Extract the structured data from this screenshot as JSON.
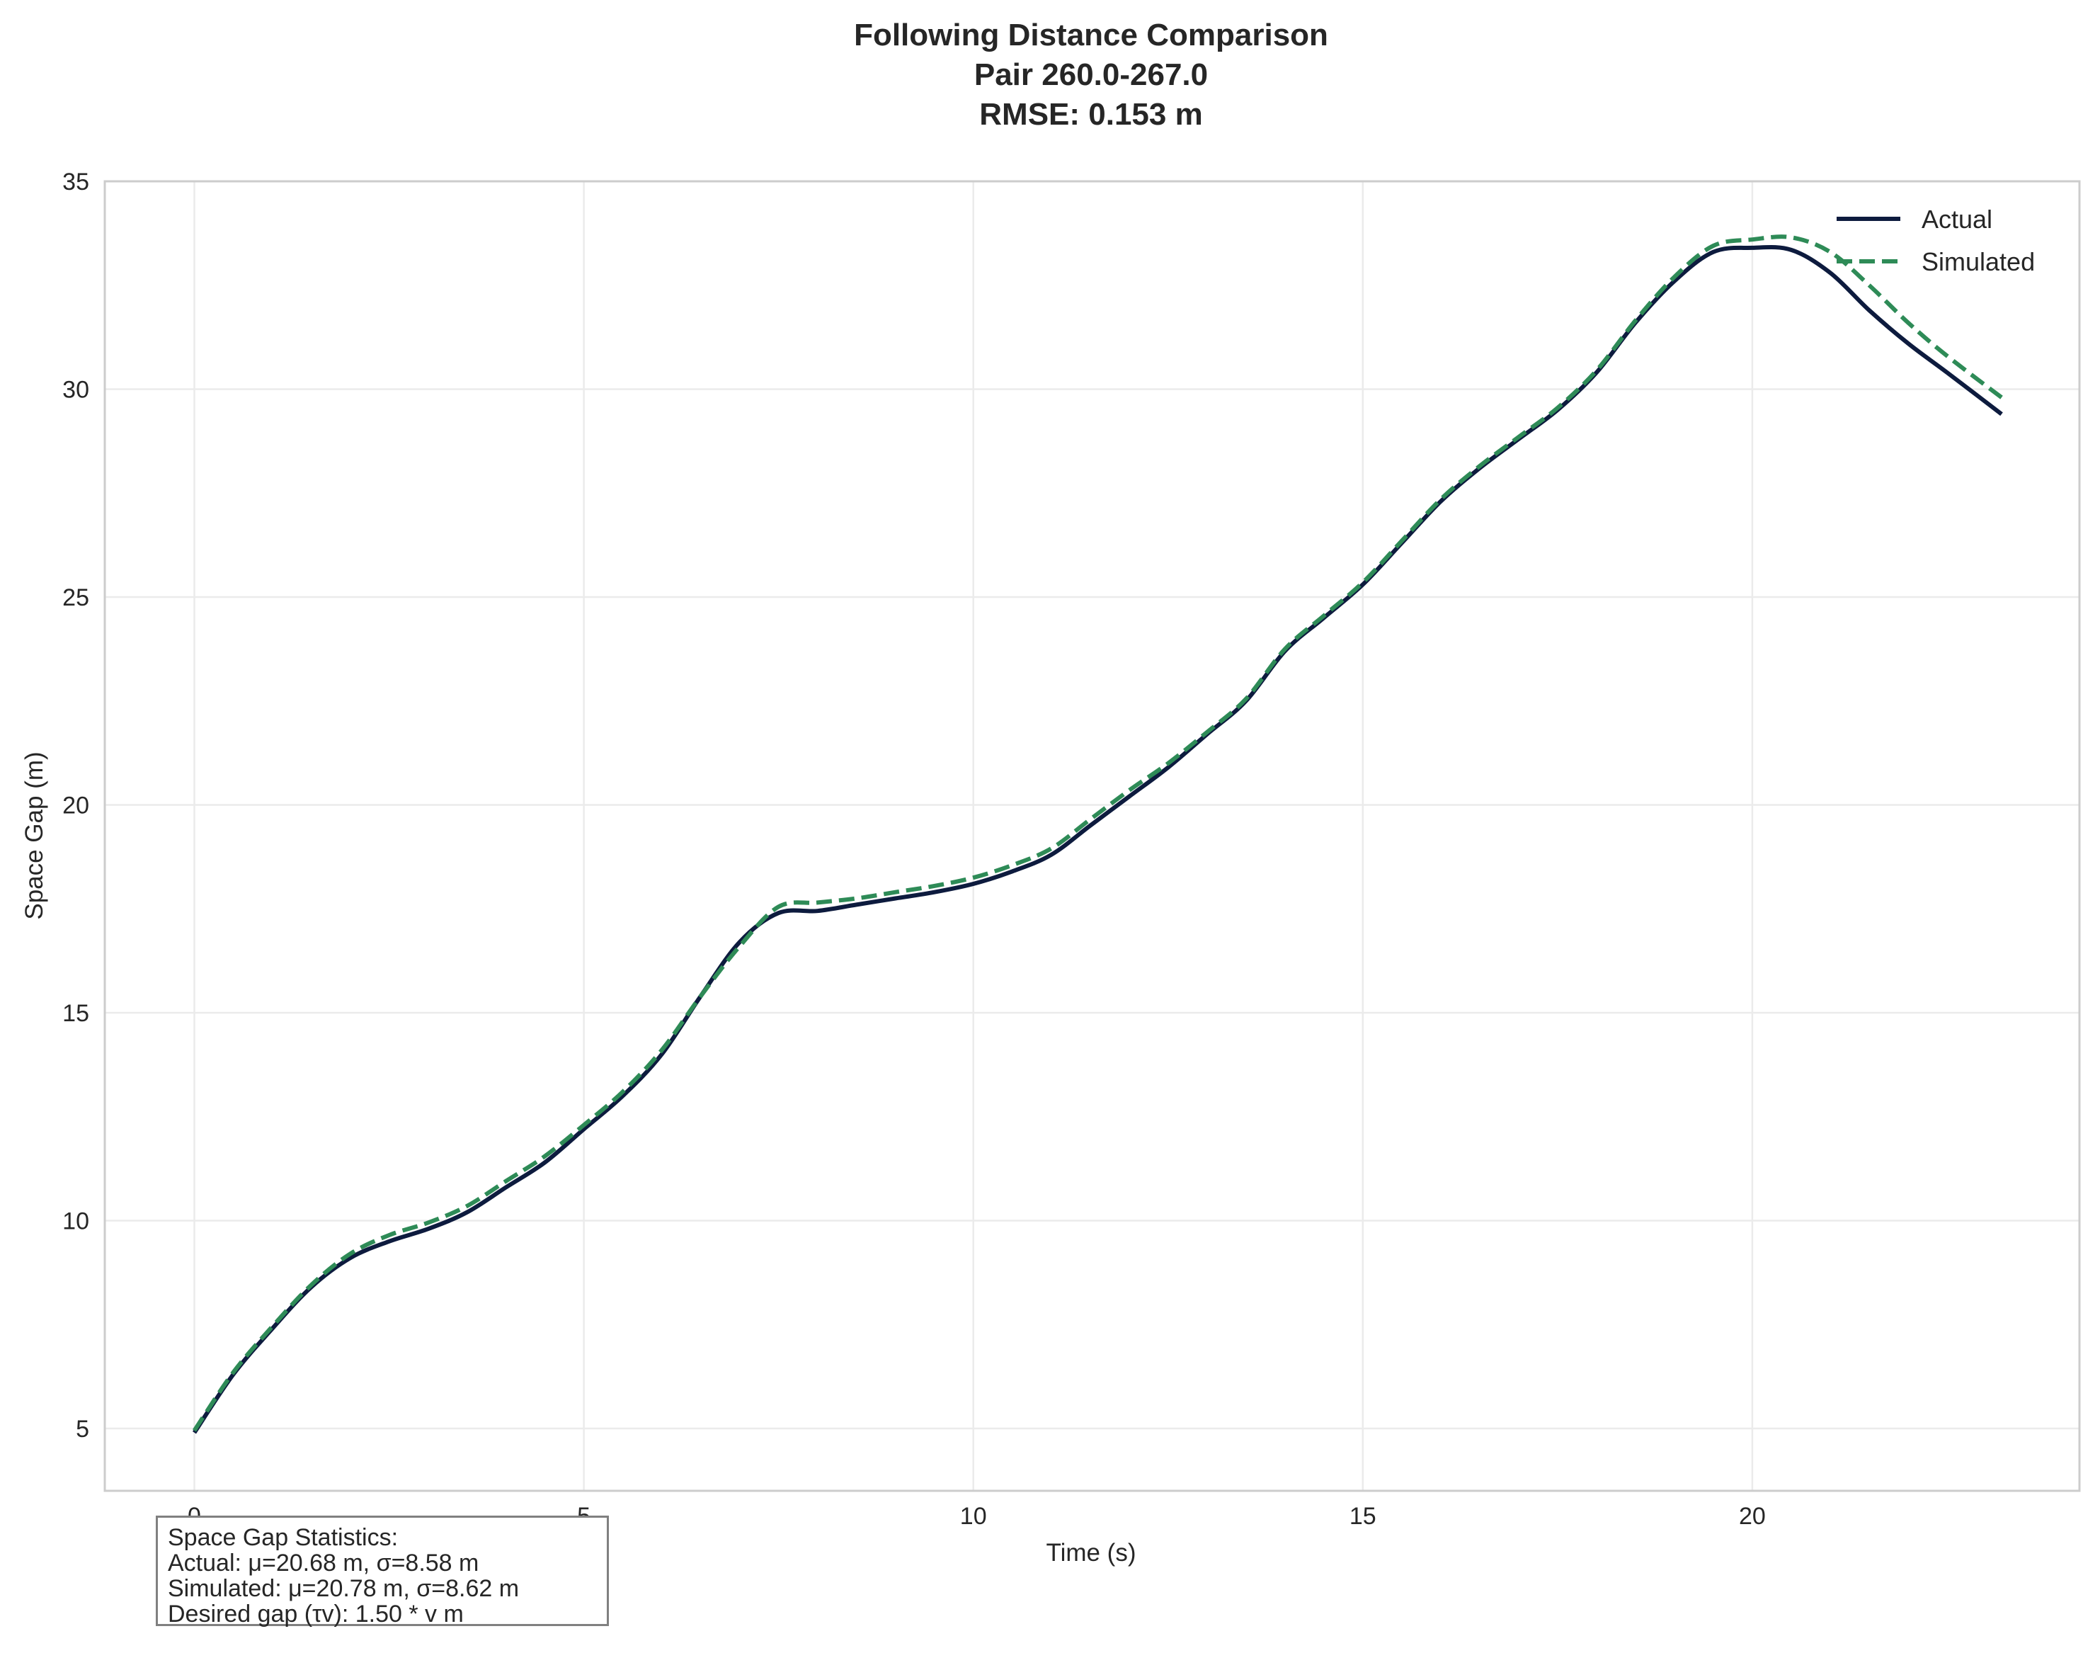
{
  "chart_data": {
    "type": "line",
    "title_lines": [
      "Following Distance Comparison",
      "Pair 260.0-267.0",
      "RMSE: 0.153 m"
    ],
    "xlabel": "Time (s)",
    "ylabel": "Space Gap (m)",
    "xlim": [
      -1.15,
      24.2
    ],
    "ylim": [
      3.5,
      35
    ],
    "xticks": [
      0,
      5,
      10,
      15,
      20
    ],
    "yticks": [
      5,
      10,
      15,
      20,
      25,
      30,
      35
    ],
    "grid": true,
    "legend_position": "upper right",
    "series": [
      {
        "name": "Actual",
        "color": "#0d1b3e",
        "style": "solid",
        "x": [
          0,
          0.5,
          1,
          1.5,
          2,
          2.5,
          3,
          3.5,
          4,
          4.5,
          5,
          5.5,
          6,
          6.5,
          7,
          7.5,
          8,
          8.5,
          9,
          9.5,
          10,
          10.5,
          11,
          11.5,
          12,
          12.5,
          13,
          13.5,
          14,
          14.5,
          15,
          15.5,
          16,
          16.5,
          17,
          17.5,
          18,
          18.5,
          19,
          19.5,
          20,
          20.5,
          21,
          21.5,
          22,
          22.5,
          23.2
        ],
        "y": [
          4.9,
          6.3,
          7.4,
          8.4,
          9.1,
          9.5,
          9.8,
          10.2,
          10.8,
          11.4,
          12.2,
          13.0,
          14.0,
          15.4,
          16.7,
          17.4,
          17.45,
          17.6,
          17.75,
          17.9,
          18.1,
          18.4,
          18.8,
          19.5,
          20.2,
          20.9,
          21.7,
          22.5,
          23.7,
          24.5,
          25.3,
          26.3,
          27.3,
          28.1,
          28.8,
          29.5,
          30.4,
          31.6,
          32.6,
          33.3,
          33.4,
          33.35,
          32.8,
          31.9,
          31.1,
          30.4,
          29.4
        ]
      },
      {
        "name": "Simulated",
        "color": "#2e8b57",
        "style": "dashed",
        "x": [
          0,
          0.5,
          1,
          1.5,
          2,
          2.5,
          3,
          3.5,
          4,
          4.5,
          5,
          5.5,
          6,
          6.5,
          7,
          7.5,
          8,
          8.5,
          9,
          9.5,
          10,
          10.5,
          11,
          11.5,
          12,
          12.5,
          13,
          13.5,
          14,
          14.5,
          15,
          15.5,
          16,
          16.5,
          17,
          17.5,
          18,
          18.5,
          19,
          19.5,
          20,
          20.5,
          21,
          21.5,
          22,
          22.5,
          23.2
        ],
        "y": [
          4.95,
          6.35,
          7.45,
          8.45,
          9.2,
          9.65,
          9.95,
          10.35,
          10.95,
          11.55,
          12.3,
          13.1,
          14.1,
          15.4,
          16.6,
          17.55,
          17.65,
          17.75,
          17.9,
          18.05,
          18.25,
          18.55,
          18.95,
          19.65,
          20.35,
          21.0,
          21.75,
          22.55,
          23.75,
          24.55,
          25.35,
          26.35,
          27.35,
          28.15,
          28.85,
          29.55,
          30.45,
          31.65,
          32.7,
          33.45,
          33.6,
          33.65,
          33.3,
          32.5,
          31.6,
          30.8,
          29.8
        ]
      }
    ]
  },
  "stats": {
    "heading": "Space Gap Statistics:",
    "actual": "Actual: μ=20.68 m, σ=8.58 m",
    "simulated": "Simulated: μ=20.78 m, σ=8.62 m",
    "desired": "Desired gap (τv): 1.50 * v m"
  }
}
